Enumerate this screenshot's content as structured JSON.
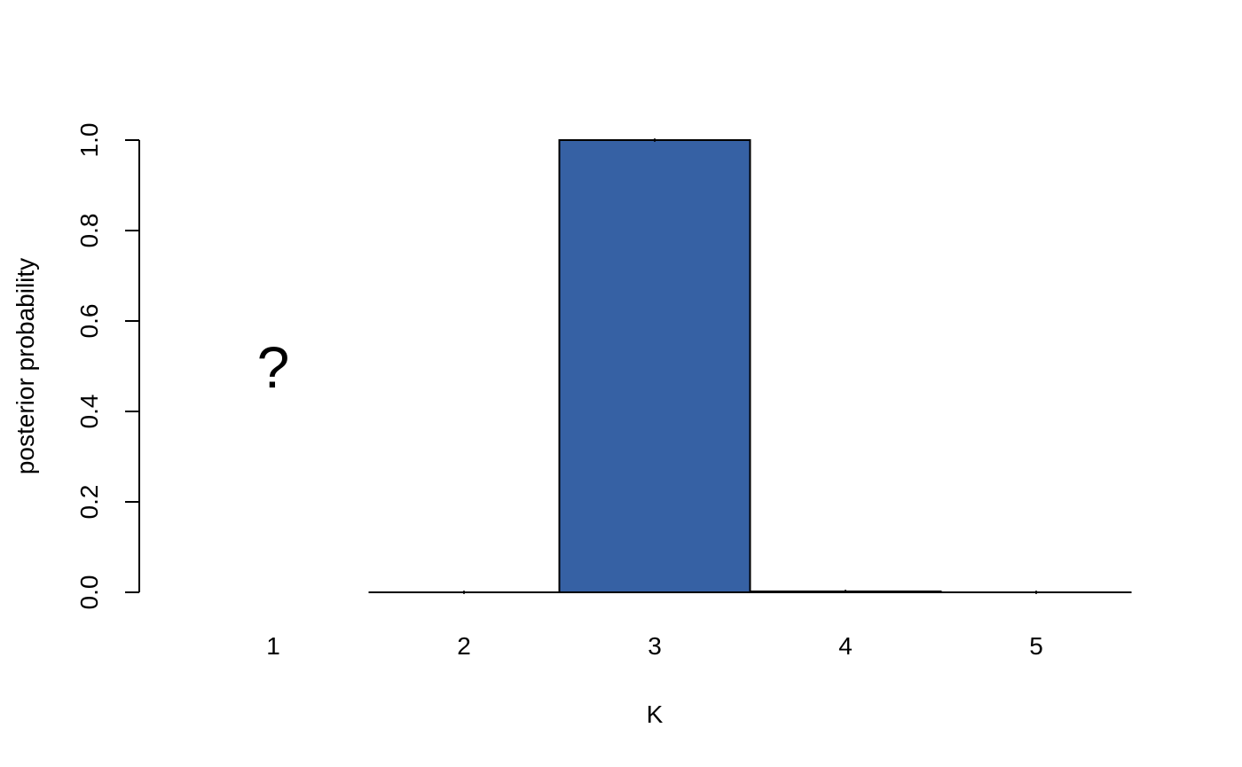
{
  "chart_data": {
    "type": "bar",
    "categories": [
      "1",
      "2",
      "3",
      "4",
      "5"
    ],
    "values": [
      null,
      0.0,
      1.0,
      0.002,
      0.0
    ],
    "missing": [
      {
        "category": "1",
        "marker": "?"
      }
    ],
    "title": "",
    "xlabel": "K",
    "ylabel": "posterior probability",
    "ylim": [
      0,
      1
    ],
    "yticks": [
      "0.0",
      "0.2",
      "0.4",
      "0.6",
      "0.8",
      "1.0"
    ],
    "bar_color": "#3661a4",
    "grid": false
  }
}
